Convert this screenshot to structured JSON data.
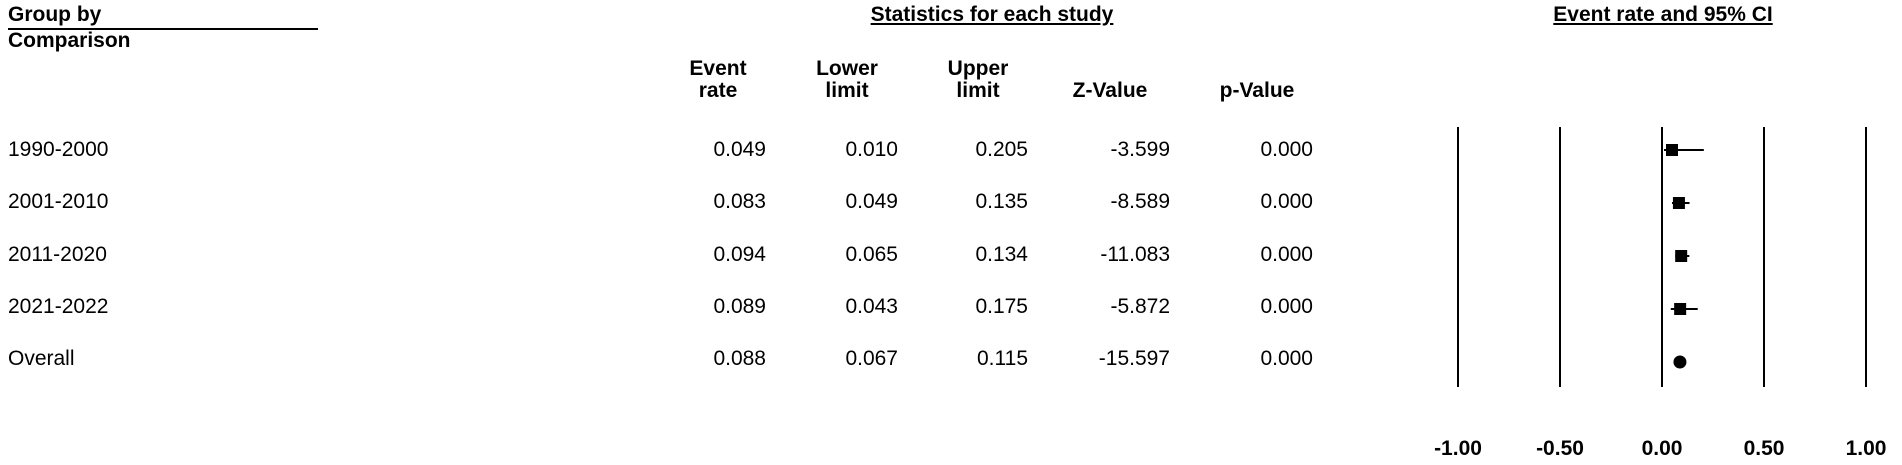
{
  "headers": {
    "group_by": "Group by",
    "comparison": "Comparison",
    "stats_title": "Statistics for each study",
    "ci_title": "Event rate and 95% CI"
  },
  "columns": [
    {
      "line1": "Event",
      "line2": "rate"
    },
    {
      "line1": "Lower",
      "line2": "limit"
    },
    {
      "line1": "Upper",
      "line2": "limit"
    },
    {
      "line1": "",
      "line2": "Z-Value"
    },
    {
      "line1": "",
      "line2": "p-Value"
    }
  ],
  "rows": [
    {
      "label": "1990-2000",
      "event_rate": "0.049",
      "lower": "0.010",
      "upper": "0.205",
      "z": "-3.599",
      "p": "0.000"
    },
    {
      "label": "2001-2010",
      "event_rate": "0.083",
      "lower": "0.049",
      "upper": "0.135",
      "z": "-8.589",
      "p": "0.000"
    },
    {
      "label": "2011-2020",
      "event_rate": "0.094",
      "lower": "0.065",
      "upper": "0.134",
      "z": "-11.083",
      "p": "0.000"
    },
    {
      "label": "2021-2022",
      "event_rate": "0.089",
      "lower": "0.043",
      "upper": "0.175",
      "z": "-5.872",
      "p": "0.000"
    },
    {
      "label": "Overall",
      "event_rate": "0.088",
      "lower": "0.067",
      "upper": "0.115",
      "z": "-15.597",
      "p": "0.000"
    }
  ],
  "chart_data": {
    "type": "scatter",
    "subtype": "forest-plot",
    "title": "Event rate and 95% CI",
    "xlim": [
      -1.0,
      1.0
    ],
    "x_ticks": [
      "-1.00",
      "-0.50",
      "0.00",
      "0.50",
      "1.00"
    ],
    "x_tick_values": [
      -1.0,
      -0.5,
      0.0,
      0.5,
      1.0
    ],
    "grid": true,
    "categories": [
      "1990-2000",
      "2001-2010",
      "2011-2020",
      "2021-2022",
      "Overall"
    ],
    "points": [
      {
        "label": "1990-2000",
        "estimate": 0.049,
        "lower": 0.01,
        "upper": 0.205,
        "marker": "square"
      },
      {
        "label": "2001-2010",
        "estimate": 0.083,
        "lower": 0.049,
        "upper": 0.135,
        "marker": "square"
      },
      {
        "label": "2011-2020",
        "estimate": 0.094,
        "lower": 0.065,
        "upper": 0.134,
        "marker": "square"
      },
      {
        "label": "2021-2022",
        "estimate": 0.089,
        "lower": 0.043,
        "upper": 0.175,
        "marker": "square"
      },
      {
        "label": "Overall",
        "estimate": 0.088,
        "lower": 0.067,
        "upper": 0.115,
        "marker": "circle"
      }
    ]
  }
}
